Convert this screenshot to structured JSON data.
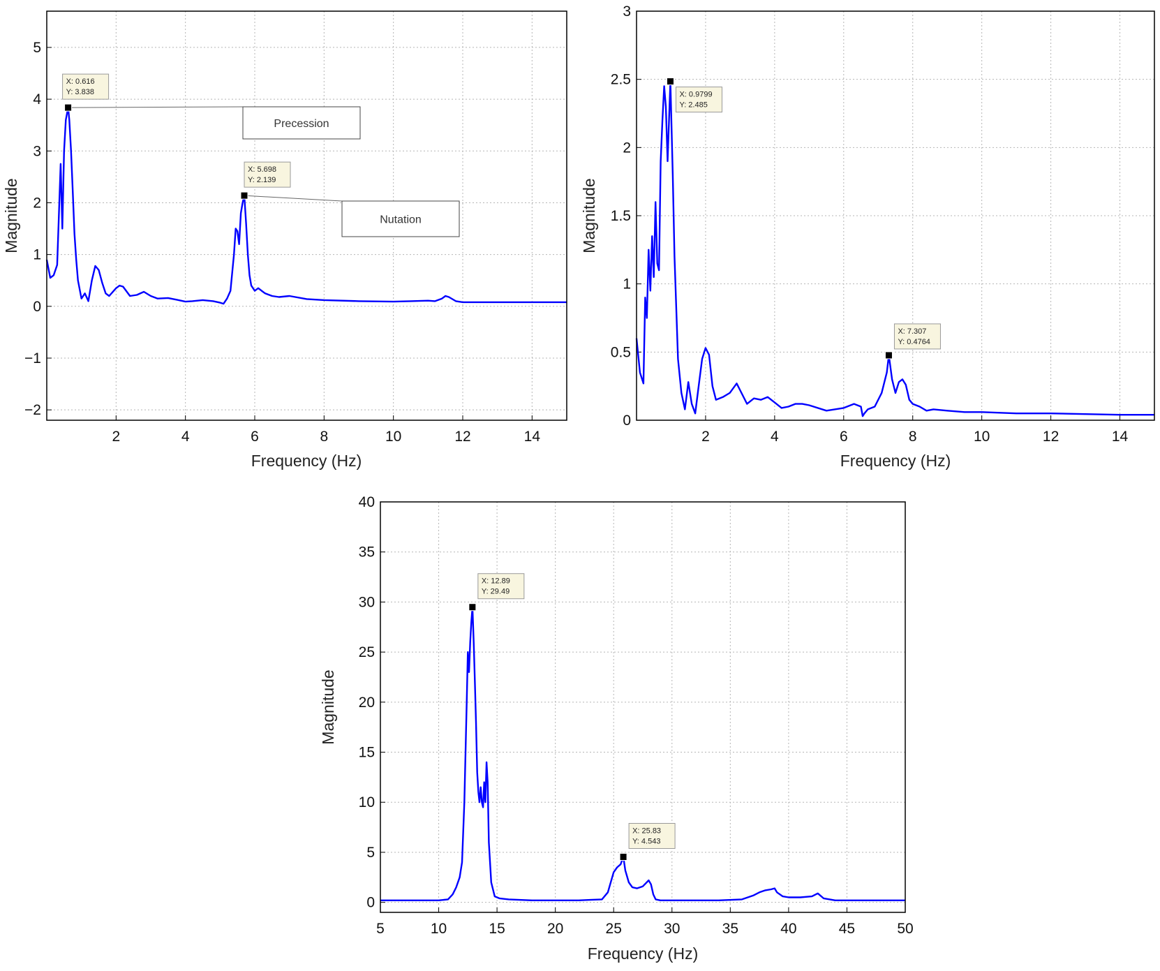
{
  "chart_data": [
    {
      "id": "c1",
      "type": "line",
      "title": "",
      "xlabel": "Frequency (Hz)",
      "ylabel": "Magnitude",
      "xlim": [
        0,
        15
      ],
      "ylim": [
        -2.2,
        5.7
      ],
      "xticks": [
        2,
        4,
        6,
        8,
        10,
        12,
        14
      ],
      "yticks": [
        -2,
        -1,
        0,
        1,
        2,
        3,
        4,
        5
      ],
      "grid": true,
      "line_color": "#0000ff",
      "series": [
        {
          "x": [
            0,
            0.1,
            0.2,
            0.3,
            0.4,
            0.45,
            0.5,
            0.55,
            0.6,
            0.616,
            0.65,
            0.7,
            0.75,
            0.8,
            0.85,
            0.9,
            1.0,
            1.1,
            1.2,
            1.3,
            1.4,
            1.5,
            1.6,
            1.7,
            1.8,
            2.0,
            2.1,
            2.2,
            2.4,
            2.6,
            2.8,
            3.0,
            3.2,
            3.5,
            3.8,
            4.0,
            4.2,
            4.5,
            4.8,
            5.0,
            5.1,
            5.2,
            5.3,
            5.4,
            5.45,
            5.5,
            5.55,
            5.6,
            5.65,
            5.698,
            5.75,
            5.8,
            5.85,
            5.9,
            6.0,
            6.1,
            6.2,
            6.3,
            6.5,
            6.7,
            7.0,
            7.5,
            8.0,
            9.0,
            10.0,
            10.5,
            11.0,
            11.2,
            11.4,
            11.5,
            11.6,
            11.8,
            12.0,
            13.0,
            14.0,
            15.0
          ],
          "y": [
            0.9,
            0.55,
            0.6,
            0.8,
            2.75,
            1.5,
            3.0,
            3.6,
            3.78,
            3.838,
            3.6,
            3.0,
            2.2,
            1.4,
            0.9,
            0.5,
            0.15,
            0.25,
            0.1,
            0.5,
            0.78,
            0.7,
            0.45,
            0.25,
            0.2,
            0.35,
            0.4,
            0.38,
            0.2,
            0.22,
            0.28,
            0.2,
            0.15,
            0.16,
            0.12,
            0.09,
            0.1,
            0.12,
            0.1,
            0.07,
            0.05,
            0.15,
            0.3,
            1.0,
            1.5,
            1.45,
            1.2,
            1.8,
            2.0,
            2.139,
            1.6,
            1.0,
            0.6,
            0.4,
            0.3,
            0.35,
            0.3,
            0.25,
            0.2,
            0.18,
            0.2,
            0.14,
            0.12,
            0.1,
            0.09,
            0.1,
            0.11,
            0.1,
            0.15,
            0.2,
            0.18,
            0.1,
            0.08,
            0.08,
            0.08,
            0.08
          ]
        }
      ],
      "datatips": [
        {
          "x": 0.616,
          "y": 3.838,
          "label_x": "X: 0.616",
          "label_y": "Y: 3.838"
        },
        {
          "x": 5.698,
          "y": 2.139,
          "label_x": "X: 5.698",
          "label_y": "Y: 2.139"
        }
      ],
      "annotations": [
        {
          "text": "Precession",
          "target_x": 0.616,
          "target_y": 3.838
        },
        {
          "text": "Nutation",
          "target_x": 5.698,
          "target_y": 2.139
        }
      ]
    },
    {
      "id": "c2",
      "type": "line",
      "title": "",
      "xlabel": "Frequency (Hz)",
      "ylabel": "Magnitude",
      "xlim": [
        0,
        15
      ],
      "ylim": [
        0,
        3
      ],
      "xticks": [
        2,
        4,
        6,
        8,
        10,
        12,
        14
      ],
      "yticks": [
        0,
        0.5,
        1,
        1.5,
        2,
        2.5,
        3
      ],
      "grid": true,
      "line_color": "#0000ff",
      "series": [
        {
          "x": [
            0,
            0.1,
            0.2,
            0.25,
            0.3,
            0.35,
            0.4,
            0.45,
            0.5,
            0.55,
            0.6,
            0.65,
            0.7,
            0.75,
            0.8,
            0.85,
            0.9,
            0.9799,
            1.05,
            1.1,
            1.2,
            1.3,
            1.4,
            1.5,
            1.6,
            1.7,
            1.8,
            1.9,
            2.0,
            2.1,
            2.2,
            2.3,
            2.5,
            2.7,
            2.9,
            3.0,
            3.2,
            3.4,
            3.6,
            3.8,
            4.0,
            4.2,
            4.4,
            4.6,
            4.8,
            5.0,
            5.5,
            6.0,
            6.3,
            6.5,
            6.55,
            6.6,
            6.7,
            6.9,
            7.1,
            7.25,
            7.307,
            7.4,
            7.5,
            7.6,
            7.7,
            7.8,
            7.9,
            8.0,
            8.2,
            8.4,
            8.6,
            9.0,
            9.5,
            10.0,
            11.0,
            12.0,
            13.0,
            14.0,
            15.0
          ],
          "y": [
            0.6,
            0.35,
            0.27,
            0.9,
            0.75,
            1.25,
            0.95,
            1.35,
            1.05,
            1.6,
            1.15,
            1.1,
            1.9,
            2.2,
            2.45,
            2.3,
            1.9,
            2.485,
            1.8,
            1.2,
            0.45,
            0.2,
            0.08,
            0.28,
            0.12,
            0.05,
            0.25,
            0.45,
            0.53,
            0.48,
            0.25,
            0.15,
            0.17,
            0.2,
            0.27,
            0.22,
            0.12,
            0.16,
            0.15,
            0.17,
            0.13,
            0.09,
            0.1,
            0.12,
            0.12,
            0.11,
            0.07,
            0.09,
            0.12,
            0.1,
            0.03,
            0.05,
            0.08,
            0.1,
            0.2,
            0.35,
            0.4764,
            0.3,
            0.2,
            0.28,
            0.3,
            0.26,
            0.15,
            0.12,
            0.1,
            0.07,
            0.08,
            0.07,
            0.06,
            0.06,
            0.05,
            0.05,
            0.045,
            0.04,
            0.04
          ]
        }
      ],
      "datatips": [
        {
          "x": 0.9799,
          "y": 2.485,
          "label_x": "X: 0.9799",
          "label_y": "Y: 2.485"
        },
        {
          "x": 7.307,
          "y": 0.4764,
          "label_x": "X: 7.307",
          "label_y": "Y: 0.4764"
        }
      ],
      "annotations": []
    },
    {
      "id": "c3",
      "type": "line",
      "title": "",
      "xlabel": "Frequency (Hz)",
      "ylabel": "Magnitude",
      "xlim": [
        5,
        50
      ],
      "ylim": [
        -1,
        40
      ],
      "xticks": [
        5,
        10,
        15,
        20,
        25,
        30,
        35,
        40,
        45,
        50
      ],
      "yticks": [
        0,
        5,
        10,
        15,
        20,
        25,
        30,
        35,
        40
      ],
      "grid": true,
      "line_color": "#0000ff",
      "series": [
        {
          "x": [
            5,
            7,
            9,
            10,
            10.8,
            11.2,
            11.5,
            11.8,
            12.0,
            12.2,
            12.4,
            12.5,
            12.6,
            12.7,
            12.8,
            12.89,
            13.0,
            13.1,
            13.2,
            13.3,
            13.4,
            13.5,
            13.6,
            13.7,
            13.8,
            13.9,
            14.0,
            14.1,
            14.2,
            14.3,
            14.5,
            14.8,
            15.2,
            16,
            18,
            20,
            22,
            23,
            24,
            24.5,
            25.0,
            25.3,
            25.6,
            25.83,
            26.0,
            26.3,
            26.6,
            27,
            27.5,
            28.0,
            28.2,
            28.4,
            28.6,
            29,
            30,
            32,
            34,
            36,
            37,
            37.5,
            38,
            38.5,
            38.8,
            39.0,
            39.5,
            40,
            41,
            42,
            42.5,
            43,
            44,
            46,
            48,
            50
          ],
          "y": [
            0.2,
            0.2,
            0.2,
            0.2,
            0.3,
            0.8,
            1.5,
            2.5,
            4,
            10,
            20,
            25,
            23,
            26,
            28,
            29.49,
            26,
            22,
            18,
            13,
            11,
            10,
            11.5,
            10,
            9.5,
            12,
            10,
            14,
            12,
            6,
            2,
            0.6,
            0.4,
            0.3,
            0.2,
            0.2,
            0.2,
            0.25,
            0.3,
            1.0,
            3.0,
            3.5,
            3.8,
            4.543,
            3.2,
            2.0,
            1.5,
            1.4,
            1.6,
            2.2,
            1.8,
            0.8,
            0.3,
            0.2,
            0.2,
            0.2,
            0.2,
            0.3,
            0.7,
            1.0,
            1.2,
            1.3,
            1.4,
            1.0,
            0.6,
            0.5,
            0.5,
            0.6,
            0.9,
            0.4,
            0.2,
            0.2,
            0.2,
            0.2
          ]
        }
      ],
      "datatips": [
        {
          "x": 12.89,
          "y": 29.49,
          "label_x": "X: 12.89",
          "label_y": "Y: 29.49"
        },
        {
          "x": 25.83,
          "y": 4.543,
          "label_x": "X: 25.83",
          "label_y": "Y: 4.543"
        }
      ],
      "annotations": []
    }
  ]
}
